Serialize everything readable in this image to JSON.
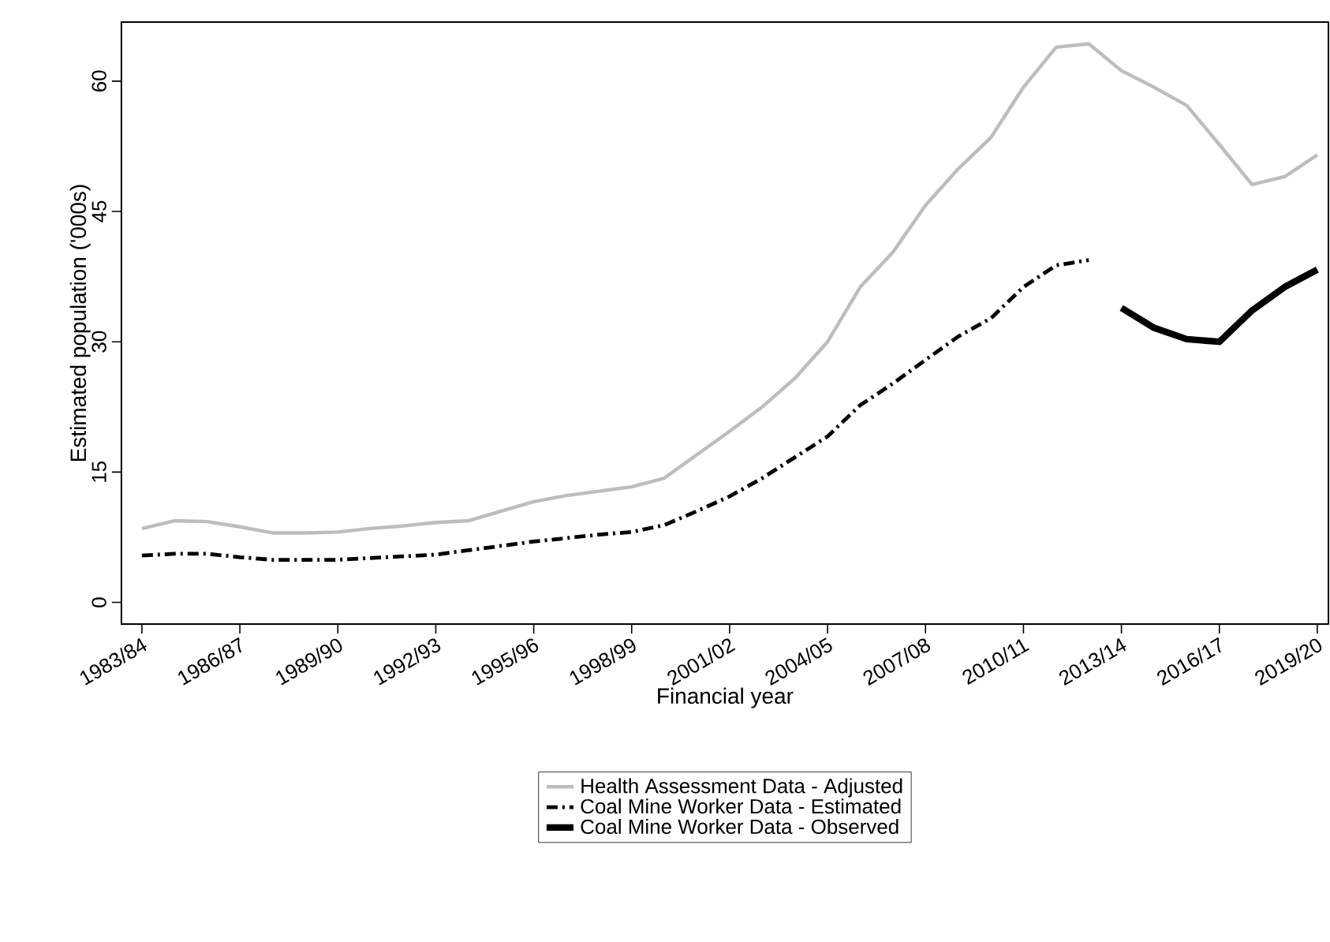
{
  "chart_data": {
    "type": "line",
    "xlabel": "Financial year",
    "ylabel": "Estimated population ('000s)",
    "categories": [
      "1983/84",
      null,
      null,
      "1986/87",
      null,
      null,
      "1989/90",
      null,
      null,
      "1992/93",
      null,
      null,
      "1995/96",
      null,
      null,
      "1998/99",
      null,
      null,
      "2001/02",
      null,
      null,
      "2004/05",
      null,
      null,
      "2007/08",
      null,
      null,
      "2010/11",
      null,
      null,
      "2013/14",
      null,
      null,
      "2016/17",
      null,
      null,
      "2019/20"
    ],
    "ylim": [
      -2.5,
      66.8
    ],
    "yticks": [
      0,
      15,
      30,
      45,
      60
    ],
    "legend": "bottom",
    "grid": false,
    "series": [
      {
        "name": "Health Assessment Data - Adjusted",
        "color": "#bdbdbd",
        "line_style": "solid",
        "values": [
          8.5,
          9.4,
          9.3,
          8.7,
          8.0,
          8.0,
          8.1,
          8.5,
          8.8,
          9.2,
          9.4,
          10.5,
          11.6,
          12.3,
          12.8,
          13.3,
          14.3,
          17.0,
          19.7,
          22.5,
          25.8,
          30.0,
          36.3,
          40.3,
          45.7,
          49.9,
          53.5,
          59.3,
          63.9,
          64.3,
          61.2,
          59.3,
          57.2,
          52.7,
          48.1,
          49.0,
          51.5
        ]
      },
      {
        "name": "Coal Mine Worker Data - Estimated",
        "color": "#000000",
        "line_style": "dashdot",
        "values": [
          5.4,
          5.6,
          5.6,
          5.2,
          4.9,
          4.9,
          4.9,
          5.1,
          5.3,
          5.5,
          6.0,
          6.5,
          7.0,
          7.4,
          7.8,
          8.1,
          8.9,
          10.5,
          12.2,
          14.3,
          16.7,
          19.1,
          22.7,
          25.2,
          27.9,
          30.6,
          32.7,
          36.3,
          38.8,
          39.4,
          null,
          null,
          null,
          null,
          null,
          null,
          null
        ]
      },
      {
        "name": "Coal Mine Worker Data - Observed",
        "color": "#000000",
        "line_style": "solid",
        "values": [
          null,
          null,
          null,
          null,
          null,
          null,
          null,
          null,
          null,
          null,
          null,
          null,
          null,
          null,
          null,
          null,
          null,
          null,
          null,
          null,
          null,
          null,
          null,
          null,
          null,
          null,
          null,
          null,
          null,
          null,
          33.9,
          31.6,
          30.3,
          30.0,
          33.6,
          36.3,
          38.3
        ]
      }
    ]
  }
}
